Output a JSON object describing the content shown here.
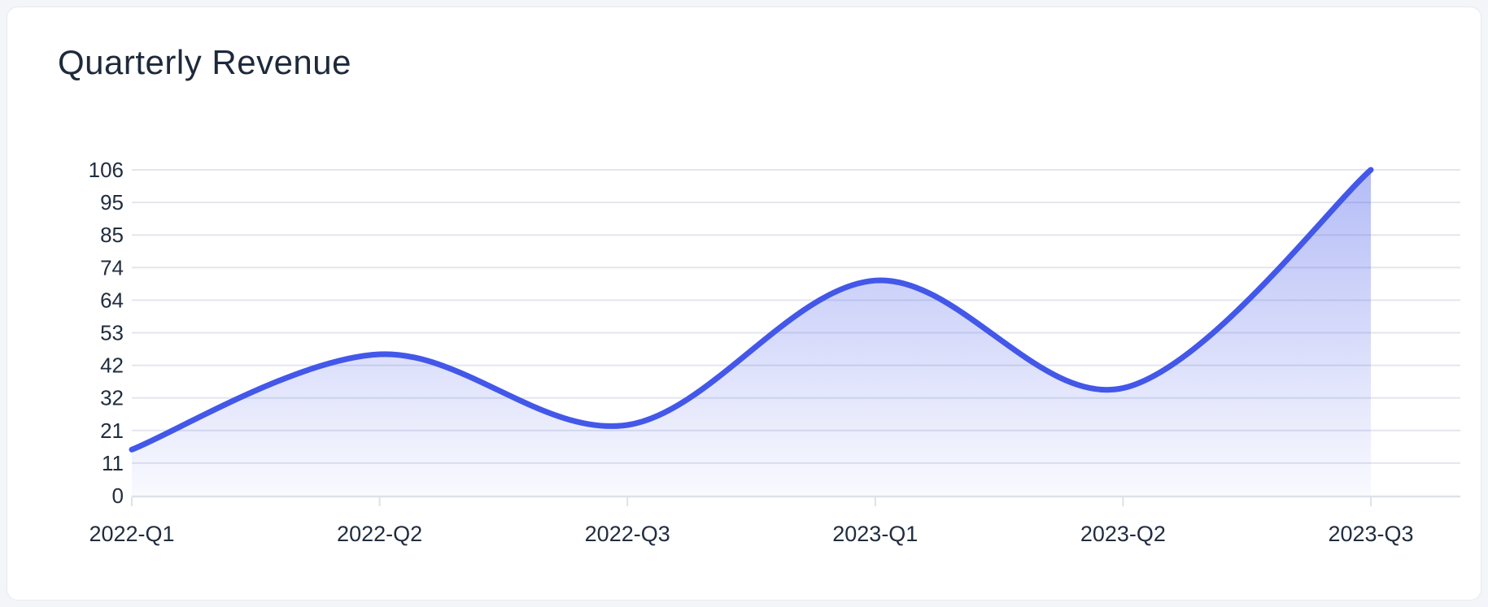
{
  "page": {
    "title": "Quarterly Revenue"
  },
  "chart_data": {
    "type": "area",
    "title": "Quarterly Revenue",
    "categories": [
      "2022-Q1",
      "2022-Q2",
      "2022-Q3",
      "2023-Q1",
      "2023-Q2",
      "2023-Q3"
    ],
    "values": [
      15,
      46,
      23,
      70,
      35,
      106
    ],
    "xlabel": "",
    "ylabel": "",
    "ylim": [
      0,
      106
    ],
    "ytick_labels": [
      "0",
      "11",
      "21",
      "32",
      "42",
      "53",
      "64",
      "74",
      "85",
      "95",
      "106"
    ],
    "grid": true,
    "legend": false,
    "smooth": true,
    "line_color": "#4357e9",
    "fill_top_color": "rgba(67, 87, 233, 0.40)",
    "fill_bottom_color": "rgba(67, 87, 233, 0.03)",
    "gridline_color": "#e3e6ee",
    "axis_line_color": "#dde1ea",
    "label_color": "#212d3f",
    "title_color": "#1e2a3b"
  }
}
